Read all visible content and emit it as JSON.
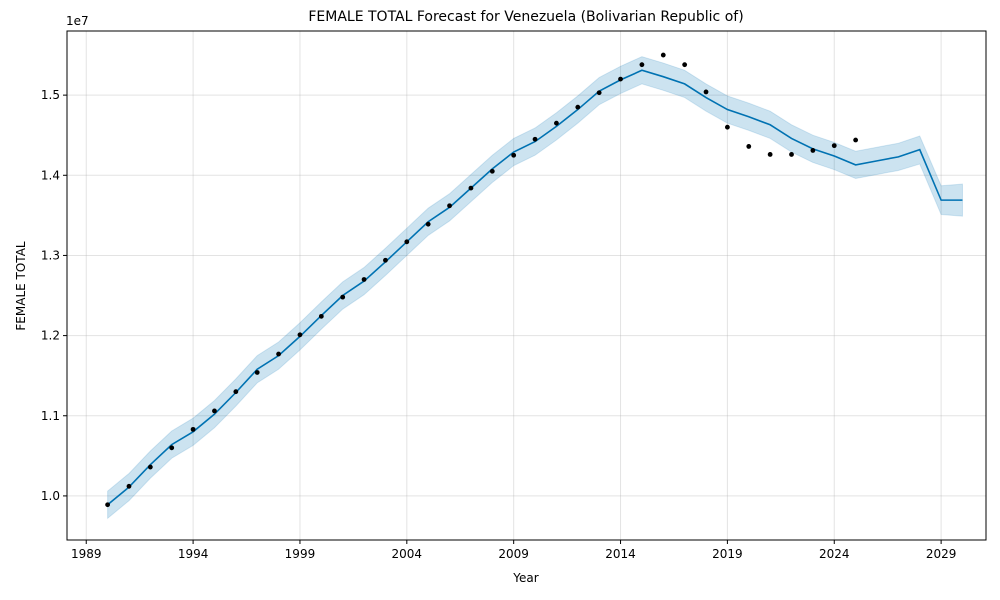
{
  "chart_data": {
    "type": "line",
    "title": "FEMALE TOTAL Forecast for Venezuela (Bolivarian Republic of)",
    "xlabel": "Year",
    "ylabel": "FEMALE TOTAL",
    "y_offset_label": "1e7",
    "xlim": [
      1988.1,
      2031.1
    ],
    "ylim": [
      9450000,
      15800000
    ],
    "x_ticks": [
      1989,
      1994,
      1999,
      2004,
      2009,
      2014,
      2019,
      2024,
      2029
    ],
    "x_tick_labels": [
      "1989",
      "1994",
      "1999",
      "2004",
      "2009",
      "2014",
      "2019",
      "2024",
      "2029"
    ],
    "y_ticks": [
      10000000,
      11000000,
      12000000,
      13000000,
      14000000,
      15000000
    ],
    "y_tick_labels": [
      "1.0",
      "1.1",
      "1.2",
      "1.3",
      "1.4",
      "1.5"
    ],
    "grid": true,
    "colors": {
      "forecast": "#0072B2",
      "band": "#0072B2",
      "points": "#000000"
    },
    "observed": {
      "x": [
        1990,
        1991,
        1992,
        1993,
        1994,
        1995,
        1996,
        1997,
        1998,
        1999,
        2000,
        2001,
        2002,
        2003,
        2004,
        2005,
        2006,
        2007,
        2008,
        2009,
        2010,
        2011,
        2012,
        2013,
        2014,
        2015,
        2016,
        2017,
        2018,
        2019,
        2020,
        2021,
        2022,
        2023,
        2024,
        2025
      ],
      "y": [
        9890000,
        10120000,
        10360000,
        10600000,
        10830000,
        11060000,
        11300000,
        11540000,
        11770000,
        12010000,
        12240000,
        12480000,
        12700000,
        12940000,
        13170000,
        13390000,
        13620000,
        13840000,
        14050000,
        14250000,
        14450000,
        14650000,
        14850000,
        15030000,
        15200000,
        15380000,
        15500000,
        15380000,
        15040000,
        14600000,
        14360000,
        14260000,
        14260000,
        14310000,
        14370000,
        14440000
      ]
    },
    "forecast": {
      "x": [
        1990,
        1991,
        1992,
        1993,
        1994,
        1995,
        1996,
        1997,
        1998,
        1999,
        2000,
        2001,
        2002,
        2003,
        2004,
        2005,
        2006,
        2007,
        2008,
        2009,
        2010,
        2011,
        2012,
        2013,
        2014,
        2015,
        2016,
        2017,
        2018,
        2019,
        2020,
        2021,
        2022,
        2023,
        2024,
        2025,
        2026,
        2027,
        2028,
        2029,
        2030
      ],
      "yhat": [
        9890000,
        10110000,
        10390000,
        10640000,
        10800000,
        11020000,
        11290000,
        11580000,
        11750000,
        11990000,
        12250000,
        12500000,
        12680000,
        12920000,
        13170000,
        13420000,
        13600000,
        13840000,
        14080000,
        14290000,
        14420000,
        14610000,
        14820000,
        15050000,
        15190000,
        15310000,
        15230000,
        15140000,
        14970000,
        14820000,
        14730000,
        14630000,
        14460000,
        14330000,
        14240000,
        14130000,
        14180000,
        14230000,
        14320000,
        13690000,
        13690000
      ],
      "lower": [
        9720000,
        9940000,
        10220000,
        10470000,
        10630000,
        10850000,
        11120000,
        11410000,
        11580000,
        11820000,
        12080000,
        12330000,
        12510000,
        12750000,
        13000000,
        13250000,
        13430000,
        13670000,
        13910000,
        14120000,
        14250000,
        14440000,
        14650000,
        14880000,
        15020000,
        15140000,
        15060000,
        14970000,
        14800000,
        14650000,
        14560000,
        14460000,
        14290000,
        14160000,
        14070000,
        13960000,
        14010000,
        14060000,
        14140000,
        13510000,
        13490000
      ],
      "upper": [
        10060000,
        10280000,
        10560000,
        10810000,
        10970000,
        11190000,
        11460000,
        11750000,
        11920000,
        12160000,
        12420000,
        12670000,
        12850000,
        13090000,
        13340000,
        13590000,
        13770000,
        14010000,
        14250000,
        14460000,
        14590000,
        14780000,
        14990000,
        15220000,
        15360000,
        15480000,
        15400000,
        15310000,
        15140000,
        14990000,
        14900000,
        14800000,
        14630000,
        14500000,
        14410000,
        14300000,
        14350000,
        14400000,
        14490000,
        13870000,
        13890000
      ]
    }
  }
}
